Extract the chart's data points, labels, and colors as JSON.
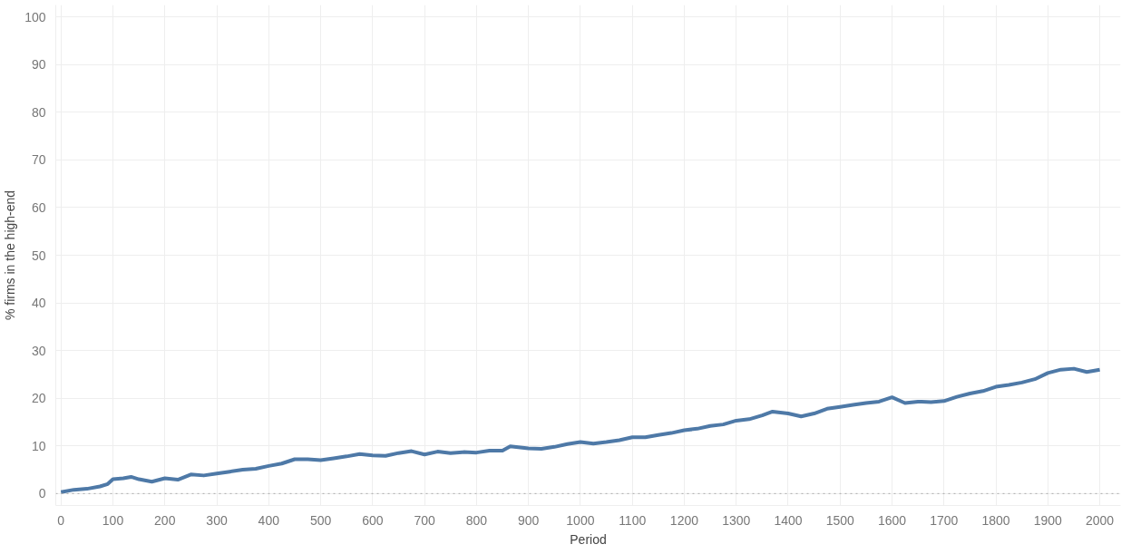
{
  "chart_data": {
    "type": "line",
    "xlabel": "Period",
    "ylabel": "% firms in the high-end",
    "x": [
      0,
      25,
      50,
      75,
      90,
      100,
      120,
      135,
      150,
      175,
      200,
      225,
      250,
      275,
      300,
      325,
      350,
      375,
      400,
      425,
      450,
      475,
      500,
      525,
      550,
      575,
      600,
      625,
      650,
      675,
      700,
      725,
      750,
      775,
      800,
      825,
      850,
      865,
      900,
      925,
      950,
      975,
      1000,
      1025,
      1050,
      1075,
      1100,
      1125,
      1150,
      1175,
      1200,
      1225,
      1250,
      1275,
      1300,
      1325,
      1350,
      1370,
      1400,
      1425,
      1450,
      1475,
      1500,
      1525,
      1550,
      1575,
      1600,
      1625,
      1650,
      1675,
      1700,
      1725,
      1750,
      1775,
      1800,
      1825,
      1850,
      1875,
      1900,
      1925,
      1950,
      1975,
      2000
    ],
    "series": [
      {
        "color": "#4e79a7",
        "values": [
          0.3,
          0.8,
          1.0,
          1.5,
          2.0,
          3.0,
          3.2,
          3.5,
          3.0,
          2.5,
          3.2,
          2.9,
          4.0,
          3.8,
          4.2,
          4.6,
          5.0,
          5.2,
          5.8,
          6.3,
          7.2,
          7.2,
          7.0,
          7.4,
          7.8,
          8.3,
          8.0,
          7.9,
          8.5,
          8.9,
          8.2,
          8.8,
          8.5,
          8.7,
          8.6,
          9.0,
          9.0,
          9.9,
          9.5,
          9.4,
          9.8,
          10.4,
          10.8,
          10.5,
          10.8,
          11.2,
          11.8,
          11.8,
          12.3,
          12.7,
          13.3,
          13.6,
          14.2,
          14.5,
          15.3,
          15.6,
          16.4,
          17.2,
          16.8,
          16.2,
          16.8,
          17.8,
          18.2,
          18.6,
          19.0,
          19.3,
          20.2,
          19.0,
          19.3,
          19.2,
          19.4,
          20.3,
          21.0,
          21.5,
          22.4,
          22.8,
          23.3,
          24.0,
          25.3,
          26.0,
          26.2,
          25.5,
          26.0
        ]
      }
    ],
    "xlim": [
      -10,
      2040
    ],
    "ylim": [
      -2.5,
      102.5
    ],
    "xticks": [
      0,
      100,
      200,
      300,
      400,
      500,
      600,
      700,
      800,
      900,
      1000,
      1100,
      1200,
      1300,
      1400,
      1500,
      1600,
      1700,
      1800,
      1900,
      2000
    ],
    "yticks": [
      0,
      10,
      20,
      30,
      40,
      50,
      60,
      70,
      80,
      90,
      100
    ],
    "ref_lines": [
      {
        "axis": "y",
        "value": 0,
        "color": "#aaaaaa",
        "line_style": "dotted"
      }
    ],
    "grid": true,
    "marker": "none",
    "line_style": "solid"
  }
}
